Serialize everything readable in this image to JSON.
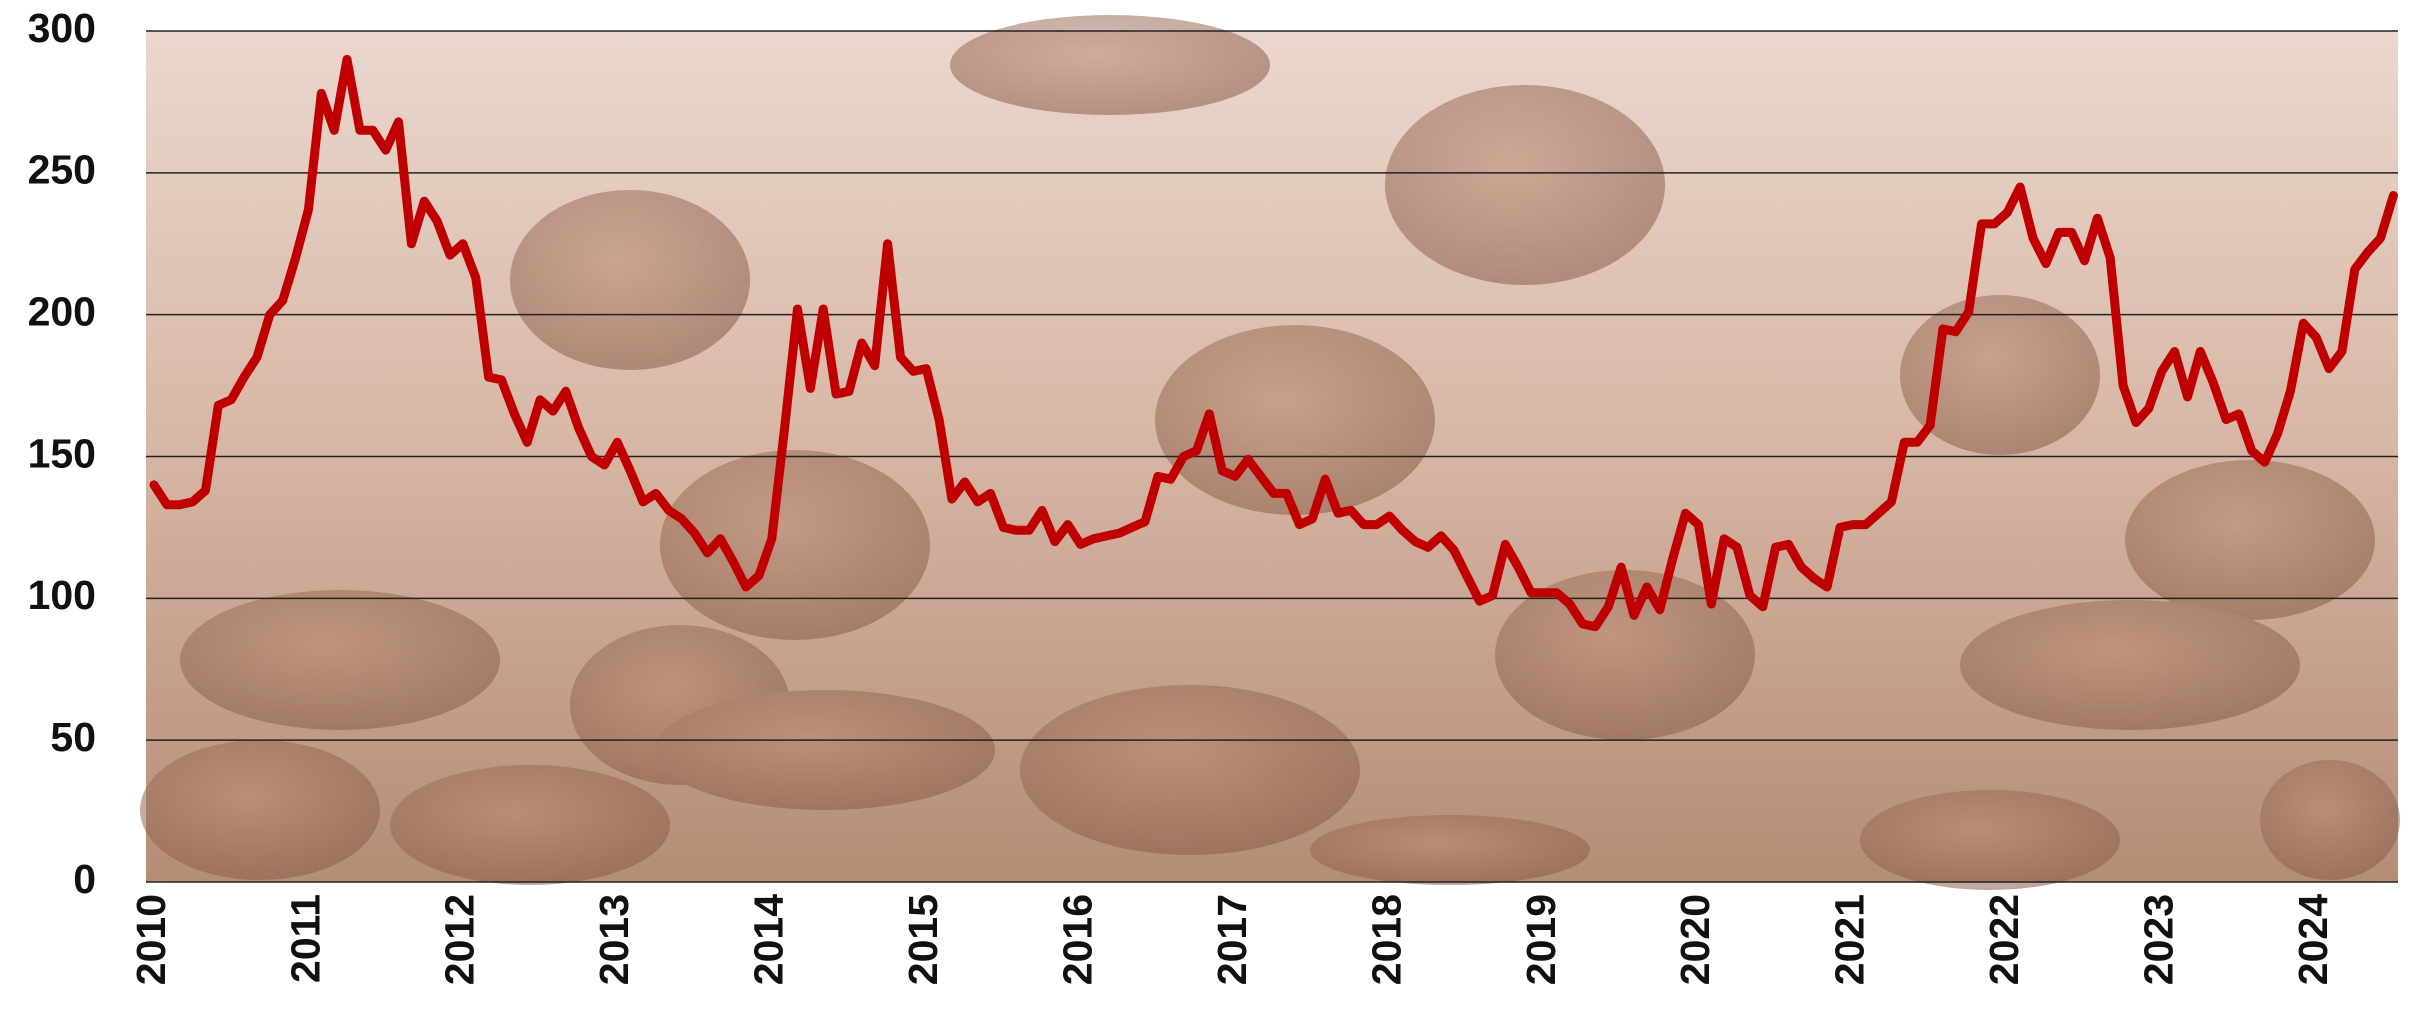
{
  "chart_data": {
    "type": "line",
    "categories": [
      "2010",
      null,
      null,
      null,
      null,
      null,
      null,
      null,
      null,
      null,
      null,
      null,
      "2011",
      null,
      null,
      null,
      null,
      null,
      null,
      null,
      null,
      null,
      null,
      null,
      "2012",
      null,
      null,
      null,
      null,
      null,
      null,
      null,
      null,
      null,
      null,
      null,
      "2013",
      null,
      null,
      null,
      null,
      null,
      null,
      null,
      null,
      null,
      null,
      null,
      "2014",
      null,
      null,
      null,
      null,
      null,
      null,
      null,
      null,
      null,
      null,
      null,
      "2015",
      null,
      null,
      null,
      null,
      null,
      null,
      null,
      null,
      null,
      null,
      null,
      "2016",
      null,
      null,
      null,
      null,
      null,
      null,
      null,
      null,
      null,
      null,
      null,
      "2017",
      null,
      null,
      null,
      null,
      null,
      null,
      null,
      null,
      null,
      null,
      null,
      "2018",
      null,
      null,
      null,
      null,
      null,
      null,
      null,
      null,
      null,
      null,
      null,
      "2019",
      null,
      null,
      null,
      null,
      null,
      null,
      null,
      null,
      null,
      null,
      null,
      "2020",
      null,
      null,
      null,
      null,
      null,
      null,
      null,
      null,
      null,
      null,
      null,
      "2021",
      null,
      null,
      null,
      null,
      null,
      null,
      null,
      null,
      null,
      null,
      null,
      "2022",
      null,
      null,
      null,
      null,
      null,
      null,
      null,
      null,
      null,
      null,
      null,
      "2023",
      null,
      null,
      null,
      null,
      null,
      null,
      null,
      null,
      null,
      null,
      null,
      "2024",
      null,
      null,
      null,
      null,
      null,
      null
    ],
    "values": [
      140,
      133,
      133,
      134,
      138,
      168,
      170,
      178,
      185,
      200,
      205,
      220,
      237,
      278,
      265,
      290,
      265,
      265,
      258,
      268,
      225,
      240,
      233,
      221,
      225,
      213,
      178,
      177,
      165,
      155,
      170,
      166,
      173,
      160,
      150,
      147,
      155,
      145,
      134,
      137,
      131,
      128,
      123,
      116,
      121,
      113,
      104,
      108,
      121,
      160,
      202,
      174,
      202,
      172,
      173,
      190,
      182,
      225,
      185,
      180,
      181,
      163,
      135,
      141,
      134,
      137,
      125,
      124,
      124,
      131,
      120,
      126,
      119,
      121,
      122,
      123,
      125,
      127,
      143,
      142,
      150,
      152,
      165,
      145,
      143,
      149,
      143,
      137,
      137,
      126,
      128,
      142,
      130,
      131,
      126,
      126,
      129,
      124,
      120,
      118,
      122,
      117,
      108,
      99,
      101,
      119,
      111,
      102,
      102,
      102,
      98,
      91,
      90,
      97,
      111,
      94,
      104,
      96,
      114,
      130,
      126,
      98,
      121,
      118,
      101,
      97,
      118,
      119,
      111,
      107,
      104,
      125,
      126,
      126,
      130,
      134,
      155,
      155,
      161,
      195,
      194,
      201,
      232,
      232,
      236,
      245,
      227,
      218,
      229,
      229,
      219,
      234,
      220,
      175,
      162,
      167,
      180,
      187,
      171,
      187,
      176,
      163,
      165,
      152,
      148,
      158,
      173,
      197,
      192,
      181,
      187,
      216,
      222,
      227,
      242
    ],
    "color": "#c00000",
    "ylim": [
      0,
      300
    ],
    "yticks": [
      0,
      50,
      100,
      150,
      200,
      250,
      300
    ],
    "grid": true
  }
}
